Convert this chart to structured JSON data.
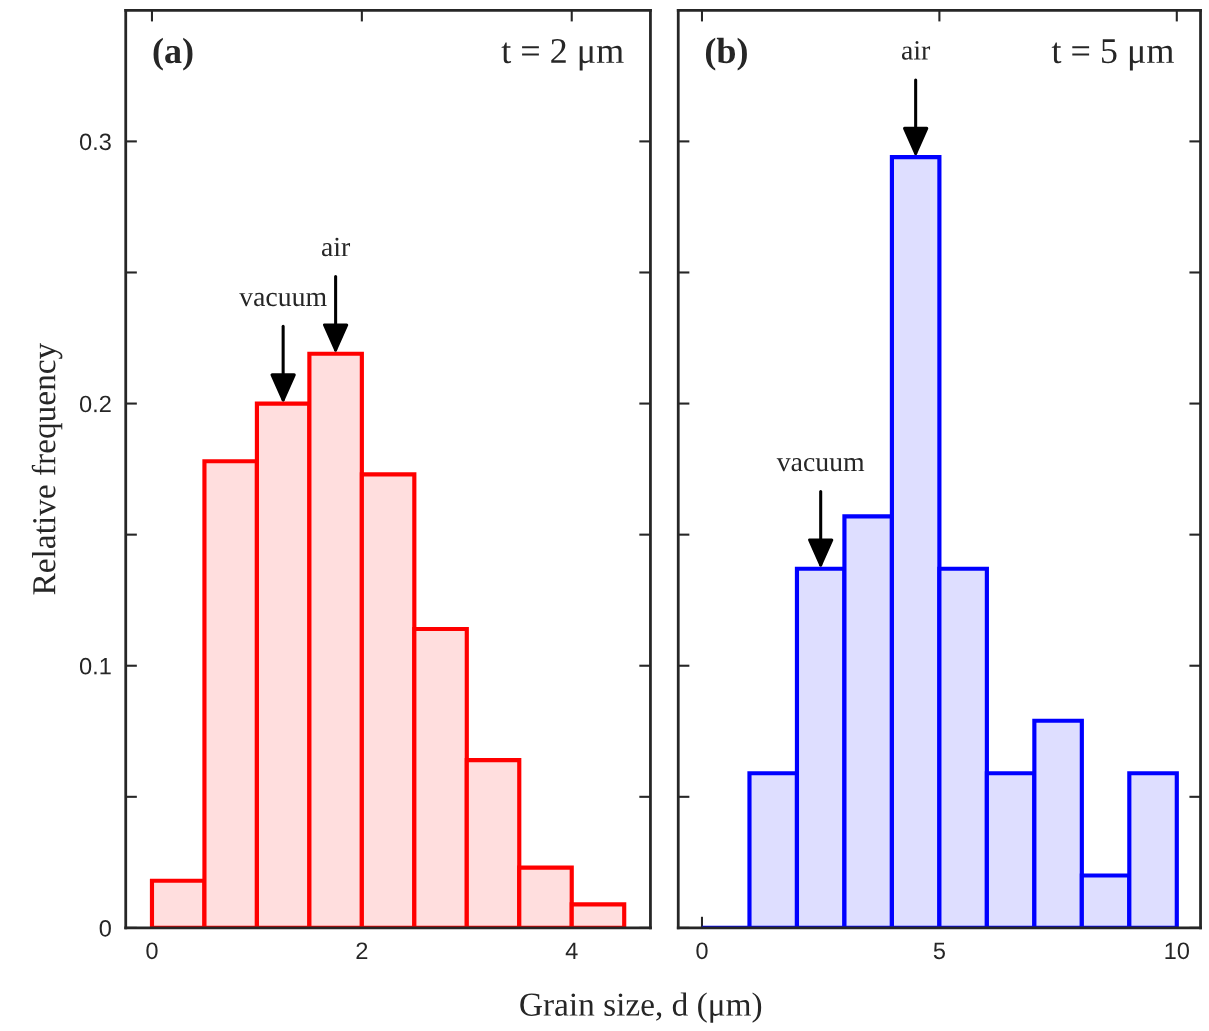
{
  "chart_data": [
    {
      "type": "histogram",
      "xlabel": "Grain size, d (μm)",
      "ylabel": "Relative frequency",
      "bins": [
        0,
        0.5,
        1,
        1.5,
        2,
        2.5,
        3,
        3.5,
        4,
        4.5
      ],
      "values": [
        0.018,
        0.178,
        0.2,
        0.219,
        0.173,
        0.114,
        0.064,
        0.023,
        0.009
      ],
      "color": "#ff0000",
      "xlim": [
        -0.25,
        4.75
      ],
      "xticks": [
        0,
        2,
        4
      ],
      "ylim": [
        0,
        0.35
      ],
      "yticks": [
        0,
        {
          "value": 0.05,
          "label": null
        },
        0.1,
        {
          "value": 0.15,
          "label": null
        },
        0.2,
        {
          "value": 0.25,
          "label": null
        },
        0.3
      ],
      "annotations": [
        "(a)",
        "t = 2 μm",
        {
          "text": "vacuum",
          "x": 1.25,
          "y": 0.2
        },
        {
          "text": "air",
          "x": 1.75,
          "y": 0.219
        }
      ]
    },
    {
      "type": "histogram",
      "bins": [
        0,
        1,
        2,
        3,
        4,
        5,
        6,
        7,
        8,
        9,
        10
      ],
      "values": [
        0,
        0.059,
        0.137,
        0.157,
        0.294,
        0.137,
        0.059,
        0.079,
        0.02,
        0.059
      ],
      "color": "#0000ff",
      "xlim": [
        -0.5,
        10.5
      ],
      "xticks": [
        0,
        5,
        10
      ],
      "ylim": [
        0,
        0.35
      ],
      "yticks": [
        0,
        {
          "value": 0.05,
          "label": null
        },
        0.1,
        {
          "value": 0.15,
          "label": null
        },
        0.2,
        {
          "value": 0.25,
          "label": null
        },
        0.3
      ],
      "tick_labels": "x",
      "annotations": [
        "(b)",
        "t = 5 μm",
        {
          "text": "vacuum",
          "x": 2.5,
          "y": 0.137
        },
        {
          "text": "air",
          "x": 4.5,
          "y": 0.294
        }
      ]
    }
  ]
}
